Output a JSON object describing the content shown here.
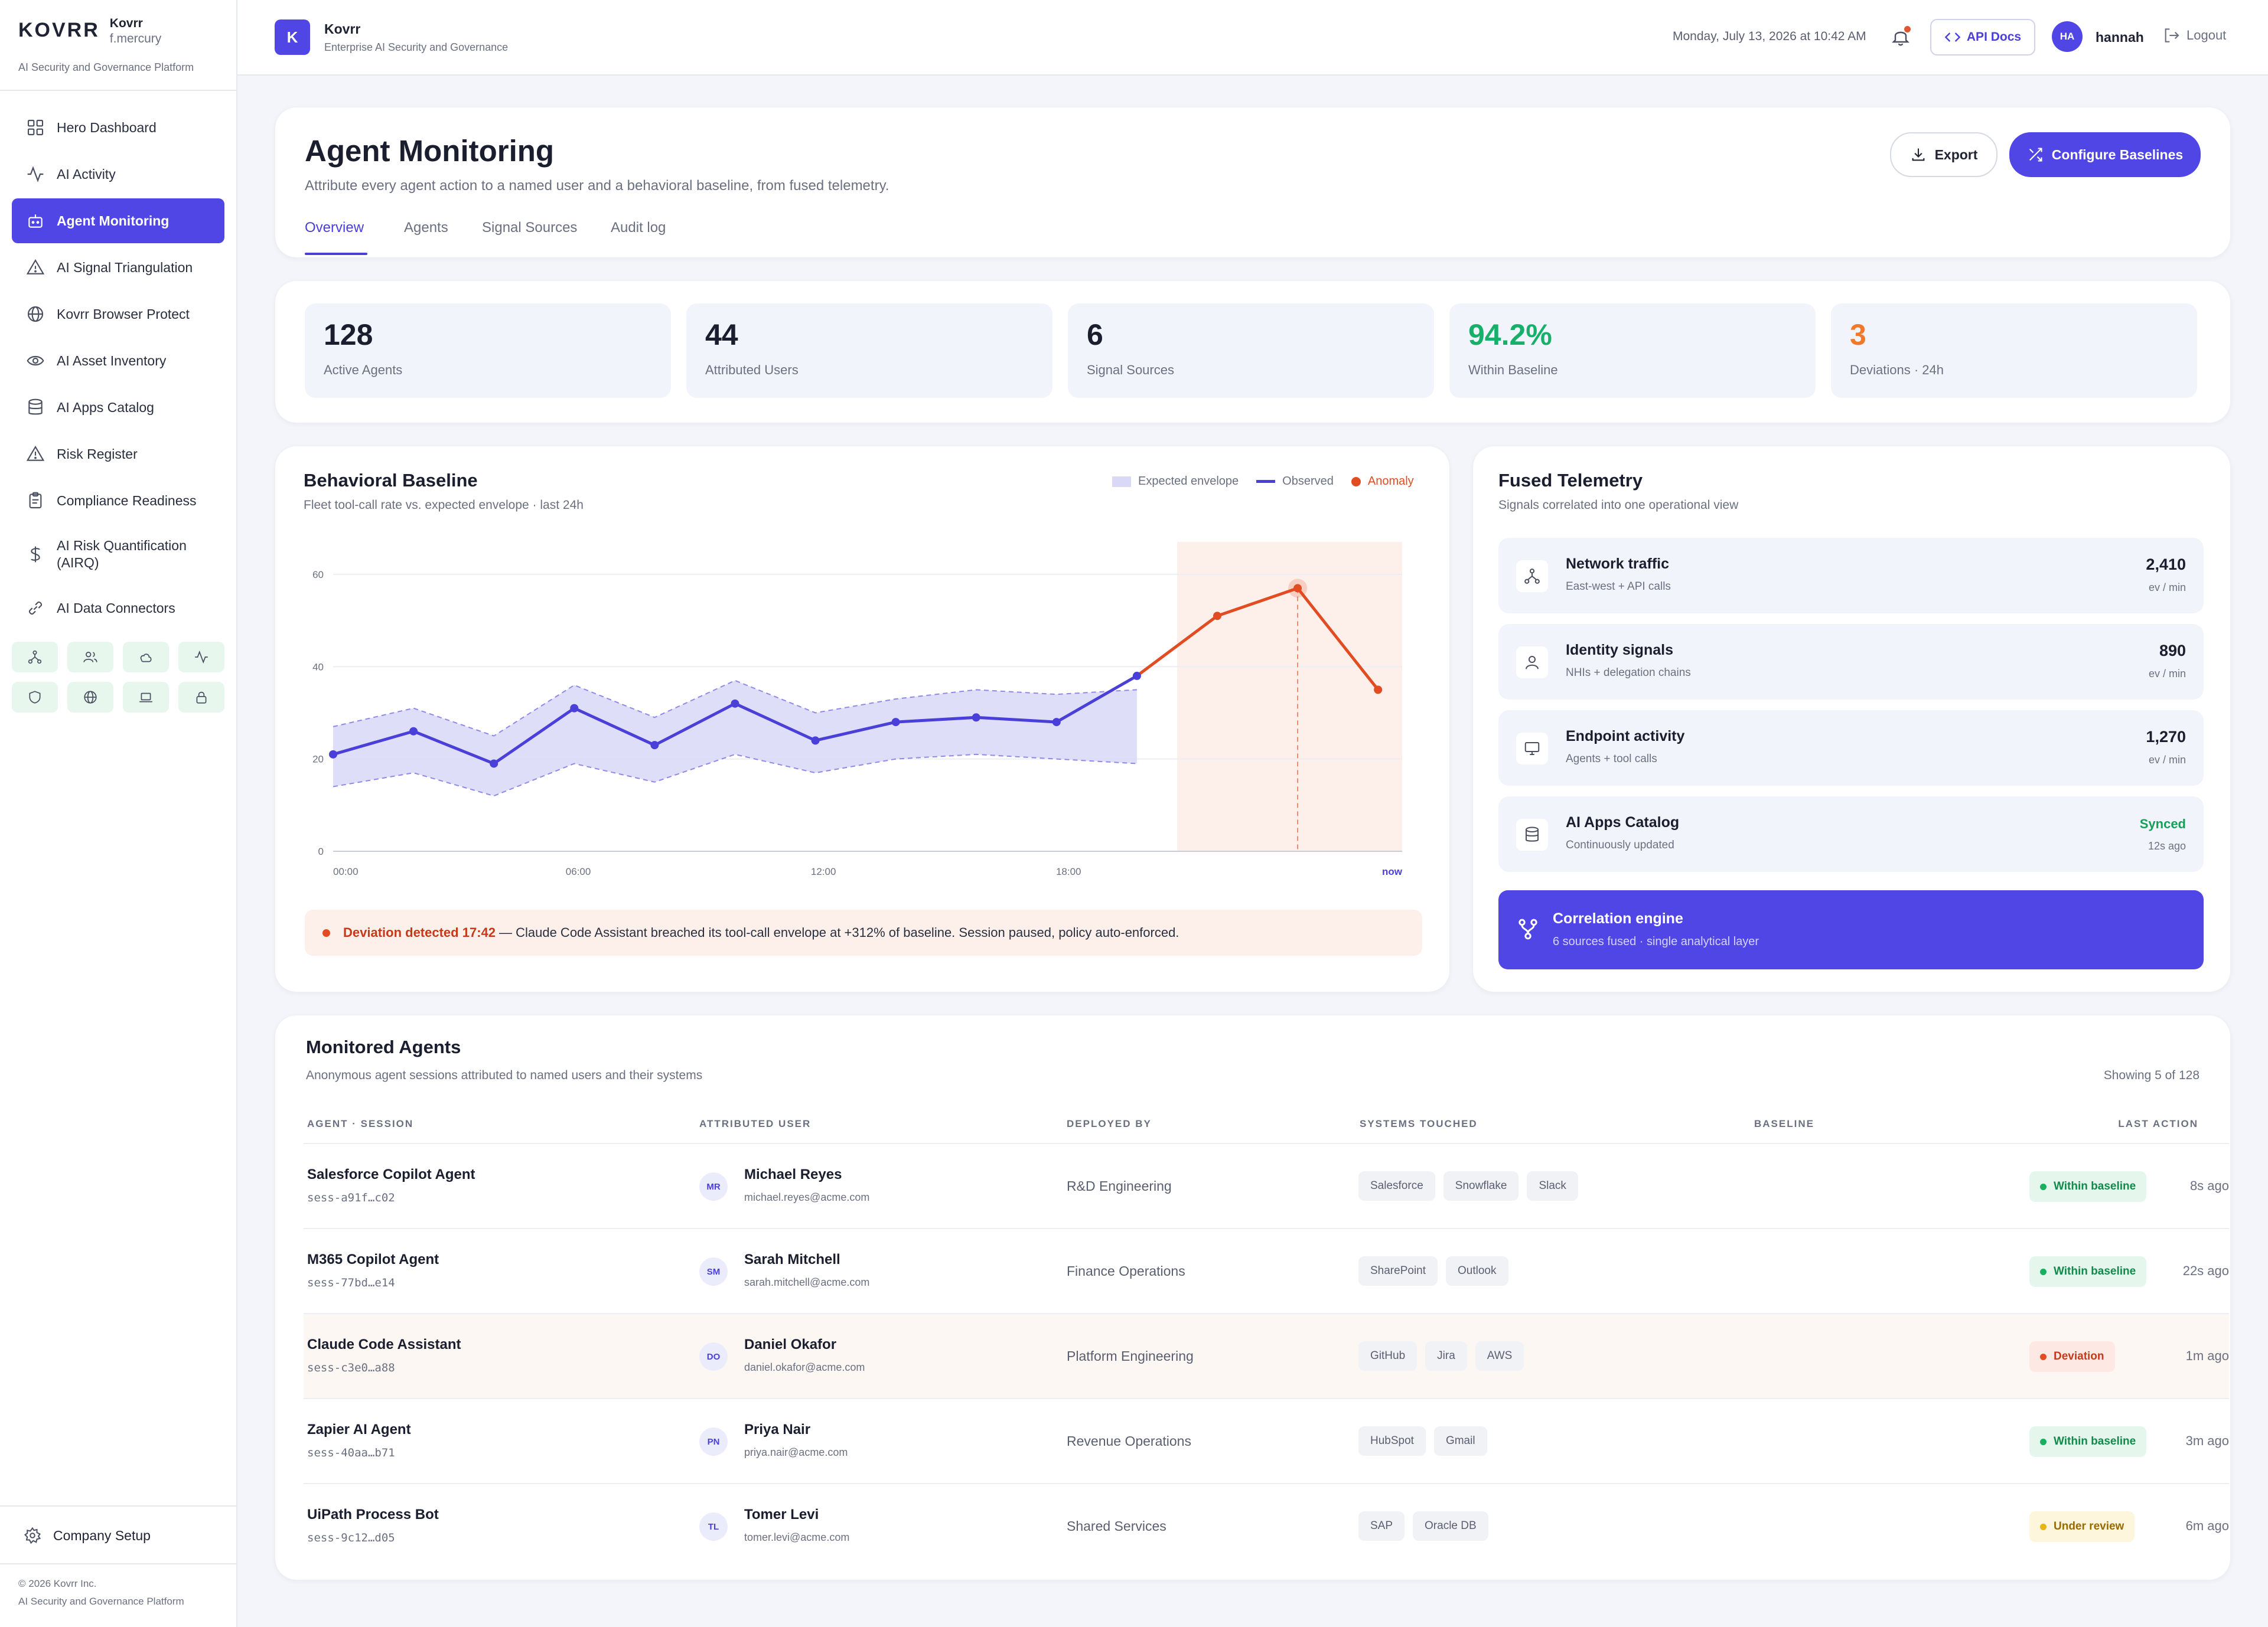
{
  "sidebar": {
    "wordmark": "KOVRR",
    "brand": "Kovrr",
    "user": "f.mercury",
    "subtitle": "AI Security and Governance Platform",
    "items": [
      {
        "label": "Hero Dashboard",
        "icon": "grid-icon"
      },
      {
        "label": "AI Activity",
        "icon": "activity-icon"
      },
      {
        "label": "Agent Monitoring",
        "icon": "bot-icon",
        "active": true
      },
      {
        "label": "AI Signal Triangulation",
        "icon": "triangle-icon"
      },
      {
        "label": "Kovrr Browser Protect",
        "icon": "globe-icon"
      },
      {
        "label": "AI Asset Inventory",
        "icon": "eye-icon"
      },
      {
        "label": "AI Apps Catalog",
        "icon": "database-icon"
      },
      {
        "label": "Risk Register",
        "icon": "alert-triangle-icon"
      },
      {
        "label": "Compliance Readiness",
        "icon": "clipboard-icon"
      },
      {
        "label": "AI Risk Quantification (AIRQ)",
        "icon": "dollar-icon"
      },
      {
        "label": "AI Data Connectors",
        "icon": "link-icon"
      }
    ],
    "quick_icons": [
      "network-icon",
      "users-icon",
      "cloud-icon",
      "activity-icon",
      "shield-icon",
      "globe-icon",
      "laptop-icon",
      "lock-icon"
    ],
    "company_setup": "Company Setup",
    "copyright": "© 2026 Kovrr Inc.",
    "copyright_sub": "AI Security and Governance Platform"
  },
  "topbar": {
    "badge": "K",
    "app_name": "Kovrr",
    "app_sub": "Enterprise AI Security and Governance",
    "date": "Monday, July 13, 2026 at 10:42 AM",
    "api_docs": "API Docs",
    "avatar": "HA",
    "username": "hannah",
    "logout": "Logout"
  },
  "header": {
    "title": "Agent Monitoring",
    "subtitle": "Attribute every agent action to a named user and a behavioral baseline, from fused telemetry.",
    "export": "Export",
    "configure": "Configure Baselines",
    "tabs": [
      "Overview",
      "Agents",
      "Signal Sources",
      "Audit log"
    ]
  },
  "kpis": [
    {
      "value": "128",
      "label": "Active Agents",
      "color": "#1a1e2e"
    },
    {
      "value": "44",
      "label": "Attributed Users",
      "color": "#1a1e2e"
    },
    {
      "value": "6",
      "label": "Signal Sources",
      "color": "#1a1e2e"
    },
    {
      "value": "94.2%",
      "label": "Within Baseline",
      "color": "#16b06a"
    },
    {
      "value": "3",
      "label": "Deviations · 24h",
      "color": "#f07a2a"
    }
  ],
  "baseline": {
    "title": "Behavioral Baseline",
    "subtitle": "Fleet tool-call rate vs. expected envelope · last 24h",
    "legend_envelope": "Expected envelope",
    "legend_observed": "Observed",
    "legend_anomaly": "Anomaly",
    "alert_strong": "Deviation detected 17:42",
    "alert_text": "— Claude Code Assistant breached its tool-call envelope at +312% of baseline. Session paused, policy auto-enforced."
  },
  "chart_data": {
    "type": "line",
    "y_ticks": [
      "60",
      "40",
      "20",
      "0"
    ],
    "x_ticks": [
      "00:00",
      "06:00",
      "12:00",
      "18:00",
      "now"
    ],
    "ylim": [
      0,
      66
    ],
    "xlim": [
      0,
      26.6
    ],
    "envelope_x": [
      0,
      2,
      4,
      6,
      8,
      10,
      12,
      14,
      16,
      18,
      20
    ],
    "envelope_upper": [
      27,
      31,
      25,
      36,
      29,
      37,
      30,
      33,
      35,
      34,
      35
    ],
    "envelope_lower": [
      14,
      17,
      12,
      19,
      15,
      21,
      17,
      20,
      21,
      20,
      19
    ],
    "observed": {
      "x": [
        0,
        2,
        4,
        6,
        8,
        10,
        12,
        14,
        16,
        18,
        20
      ],
      "y": [
        21,
        26,
        19,
        31,
        23,
        32,
        24,
        28,
        29,
        28,
        38
      ]
    },
    "anomaly": {
      "x": [
        20,
        22,
        24,
        26
      ],
      "y": [
        38,
        51,
        57,
        35
      ]
    },
    "anomaly_window": [
      21,
      26.6
    ],
    "peak_x": 24,
    "colors": {
      "envelope": "#d9d8f7",
      "observed": "#4a3fd8",
      "anomaly": "#e24c22",
      "window": "#fdf0ea"
    }
  },
  "telemetry": {
    "title": "Fused Telemetry",
    "subtitle": "Signals correlated into one operational view",
    "rows": [
      {
        "name": "Network traffic",
        "desc": "East-west + API calls",
        "value": "2,410",
        "unit": "ev / min",
        "icon": "network-icon"
      },
      {
        "name": "Identity signals",
        "desc": "NHIs + delegation chains",
        "value": "890",
        "unit": "ev / min",
        "icon": "user-icon"
      },
      {
        "name": "Endpoint activity",
        "desc": "Agents + tool calls",
        "value": "1,270",
        "unit": "ev / min",
        "icon": "monitor-icon"
      },
      {
        "name": "AI Apps Catalog",
        "desc": "Continuously updated",
        "value": "Synced",
        "unit": "12s ago",
        "icon": "database-icon"
      }
    ],
    "engine_title": "Correlation engine",
    "engine_sub": "6 sources fused · single analytical layer"
  },
  "agents": {
    "title": "Monitored Agents",
    "subtitle": "Anonymous agent sessions attributed to named users and their systems",
    "showing": "Showing 5 of 128",
    "columns": [
      "AGENT · SESSION",
      "ATTRIBUTED USER",
      "DEPLOYED BY",
      "SYSTEMS TOUCHED",
      "BASELINE",
      "LAST ACTION"
    ],
    "rows": [
      {
        "name": "Salesforce Copilot Agent",
        "session": "sess-a91f…c02",
        "initials": "MR",
        "user": "Michael Reyes",
        "email": "michael.reyes@acme.com",
        "dept": "R&D Engineering",
        "systems": [
          "Salesforce",
          "Snowflake",
          "Slack"
        ],
        "baseline": "Within baseline",
        "status": "ok",
        "last": "8s ago"
      },
      {
        "name": "M365 Copilot Agent",
        "session": "sess-77bd…e14",
        "initials": "SM",
        "user": "Sarah Mitchell",
        "email": "sarah.mitchell@acme.com",
        "dept": "Finance Operations",
        "systems": [
          "SharePoint",
          "Outlook"
        ],
        "baseline": "Within baseline",
        "status": "ok",
        "last": "22s ago"
      },
      {
        "name": "Claude Code Assistant",
        "session": "sess-c3e0…a88",
        "initials": "DO",
        "user": "Daniel Okafor",
        "email": "daniel.okafor@acme.com",
        "dept": "Platform Engineering",
        "systems": [
          "GitHub",
          "Jira",
          "AWS"
        ],
        "baseline": "Deviation",
        "status": "dev",
        "last": "1m ago"
      },
      {
        "name": "Zapier AI Agent",
        "session": "sess-40aa…b71",
        "initials": "PN",
        "user": "Priya Nair",
        "email": "priya.nair@acme.com",
        "dept": "Revenue Operations",
        "systems": [
          "HubSpot",
          "Gmail"
        ],
        "baseline": "Within baseline",
        "status": "ok",
        "last": "3m ago"
      },
      {
        "name": "UiPath Process Bot",
        "session": "sess-9c12…d05",
        "initials": "TL",
        "user": "Tomer Levi",
        "email": "tomer.levi@acme.com",
        "dept": "Shared Services",
        "systems": [
          "SAP",
          "Oracle DB"
        ],
        "baseline": "Under review",
        "status": "rev",
        "last": "6m ago"
      }
    ]
  }
}
